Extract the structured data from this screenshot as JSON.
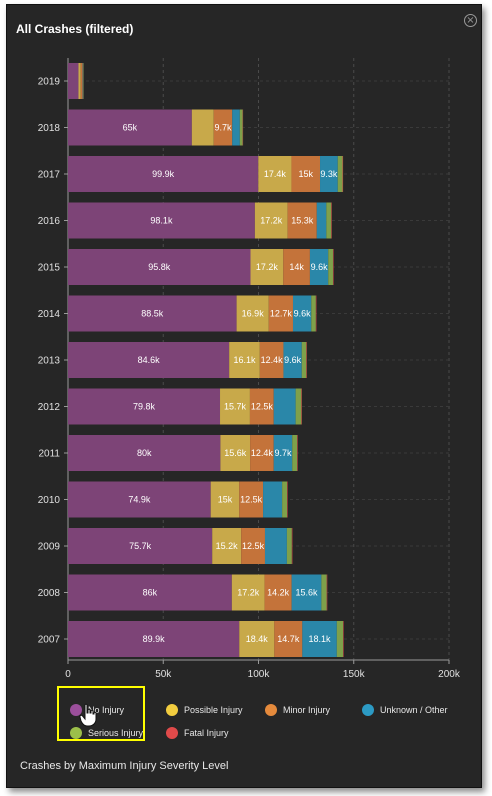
{
  "title": "All Crashes (filtered)",
  "footer": "Crashes by Maximum Injury Severity Level",
  "close_icon": "close-circle-icon",
  "colors": {
    "no_injury": "#7d4477",
    "possible_injury": "#c8a94a",
    "minor_injury": "#c4733a",
    "unknown_other": "#2a87a9",
    "serious_injury": "#7fa04a",
    "fatal_injury": "#c94646",
    "legend_no_injury": "#9b4f9b",
    "legend_possible_injury": "#f2cd3f",
    "legend_minor_injury": "#e58a3c",
    "legend_unknown_other": "#2c9ac4",
    "legend_serious_injury": "#9cbf4a",
    "legend_fatal_injury": "#e04a4a",
    "highlight": "#ffff00"
  },
  "legend": [
    {
      "key": "no_injury",
      "label": "No Injury"
    },
    {
      "key": "possible_injury",
      "label": "Possible Injury"
    },
    {
      "key": "minor_injury",
      "label": "Minor Injury"
    },
    {
      "key": "unknown_other",
      "label": "Unknown / Other"
    },
    {
      "key": "serious_injury",
      "label": "Serious Injury"
    },
    {
      "key": "fatal_injury",
      "label": "Fatal Injury"
    }
  ],
  "chart_data": {
    "type": "bar",
    "orientation": "horizontal",
    "stacked": true,
    "title": "All Crashes (filtered)",
    "categories": [
      "2019",
      "2018",
      "2017",
      "2016",
      "2015",
      "2014",
      "2013",
      "2012",
      "2011",
      "2010",
      "2009",
      "2008",
      "2007"
    ],
    "series": [
      {
        "name": "No Injury",
        "key": "no_injury",
        "values": [
          5500,
          65000,
          99900,
          98100,
          95800,
          88500,
          84600,
          79800,
          80000,
          74900,
          75700,
          86000,
          89900
        ],
        "labels": [
          "",
          "65k",
          "99.9k",
          "98.1k",
          "95.8k",
          "88.5k",
          "84.6k",
          "79.8k",
          "80k",
          "74.9k",
          "75.7k",
          "86k",
          "89.9k"
        ]
      },
      {
        "name": "Possible Injury",
        "key": "possible_injury",
        "values": [
          1200,
          11500,
          17400,
          17200,
          17200,
          16900,
          16100,
          15700,
          15600,
          15000,
          15200,
          17200,
          18400
        ],
        "labels": [
          "",
          "",
          "17.4k",
          "17.2k",
          "17.2k",
          "16.9k",
          "16.1k",
          "15.7k",
          "15.6k",
          "15k",
          "15.2k",
          "17.2k",
          "18.4k"
        ]
      },
      {
        "name": "Minor Injury",
        "key": "minor_injury",
        "values": [
          1000,
          9700,
          15000,
          15300,
          14000,
          12700,
          12400,
          12500,
          12400,
          12500,
          12500,
          14200,
          14700
        ],
        "labels": [
          "",
          "9.7k",
          "15k",
          "15.3k",
          "14k",
          "12.7k",
          "12.4k",
          "12.5k",
          "12.4k",
          "12.5k",
          "12.5k",
          "14.2k",
          "14.7k"
        ]
      },
      {
        "name": "Unknown / Other",
        "key": "unknown_other",
        "values": [
          300,
          4000,
          9300,
          5000,
          9600,
          9600,
          9600,
          11500,
          9700,
          10000,
          11500,
          15600,
          18100
        ],
        "labels": [
          "",
          "",
          "9.3k",
          "",
          "9.6k",
          "9.6k",
          "9.6k",
          "",
          "9.7k",
          "",
          "",
          "15.6k",
          "18.1k"
        ]
      },
      {
        "name": "Serious Injury",
        "key": "serious_injury",
        "values": [
          200,
          1500,
          2500,
          2600,
          2500,
          2400,
          2400,
          3000,
          2600,
          2600,
          2600,
          2800,
          3300
        ],
        "labels": [
          "",
          "",
          "",
          "",
          "",
          "",
          "",
          "",
          "",
          "",
          "",
          "",
          ""
        ]
      },
      {
        "name": "Fatal Injury",
        "key": "fatal_injury",
        "values": [
          50,
          200,
          300,
          300,
          300,
          300,
          300,
          300,
          300,
          300,
          300,
          300,
          300
        ],
        "labels": [
          "",
          "",
          "",
          "",
          "",
          "",
          "",
          "",
          "",
          "",
          "",
          "",
          ""
        ]
      }
    ],
    "x_ticks": [
      "0",
      "50k",
      "100k",
      "150k",
      "200k"
    ],
    "x_tick_values": [
      0,
      50000,
      100000,
      150000,
      200000
    ],
    "xlim": [
      0,
      200000
    ],
    "xlabel": "",
    "ylabel": "",
    "grid": true,
    "legend_position": "bottom"
  }
}
